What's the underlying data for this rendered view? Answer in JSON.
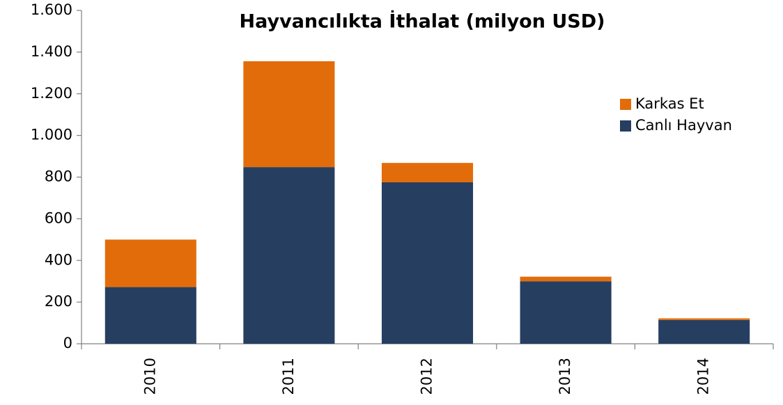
{
  "chart_data": {
    "type": "stacked_bar",
    "title": "Hayvancılıkta İthalat (milyon USD)",
    "categories": [
      "2010",
      "2011",
      "2012",
      "2013",
      "2014"
    ],
    "series": [
      {
        "name": "Canlı Hayvan",
        "color": "#263f60",
        "values": [
          272,
          848,
          775,
          300,
          114
        ]
      },
      {
        "name": "Karkas Et",
        "color": "#e36c0a",
        "values": [
          228,
          508,
          93,
          22,
          8
        ]
      }
    ],
    "ylim": [
      0,
      1600
    ],
    "yticks": [
      0,
      200,
      400,
      600,
      800,
      {
        "value": 1000,
        "label": "1.000"
      },
      {
        "value": 1200,
        "label": "1.200"
      },
      {
        "value": 1400,
        "label": "1.400"
      },
      {
        "value": 1600,
        "label": "1.600"
      }
    ],
    "legend": "upper right",
    "grid": false
  }
}
